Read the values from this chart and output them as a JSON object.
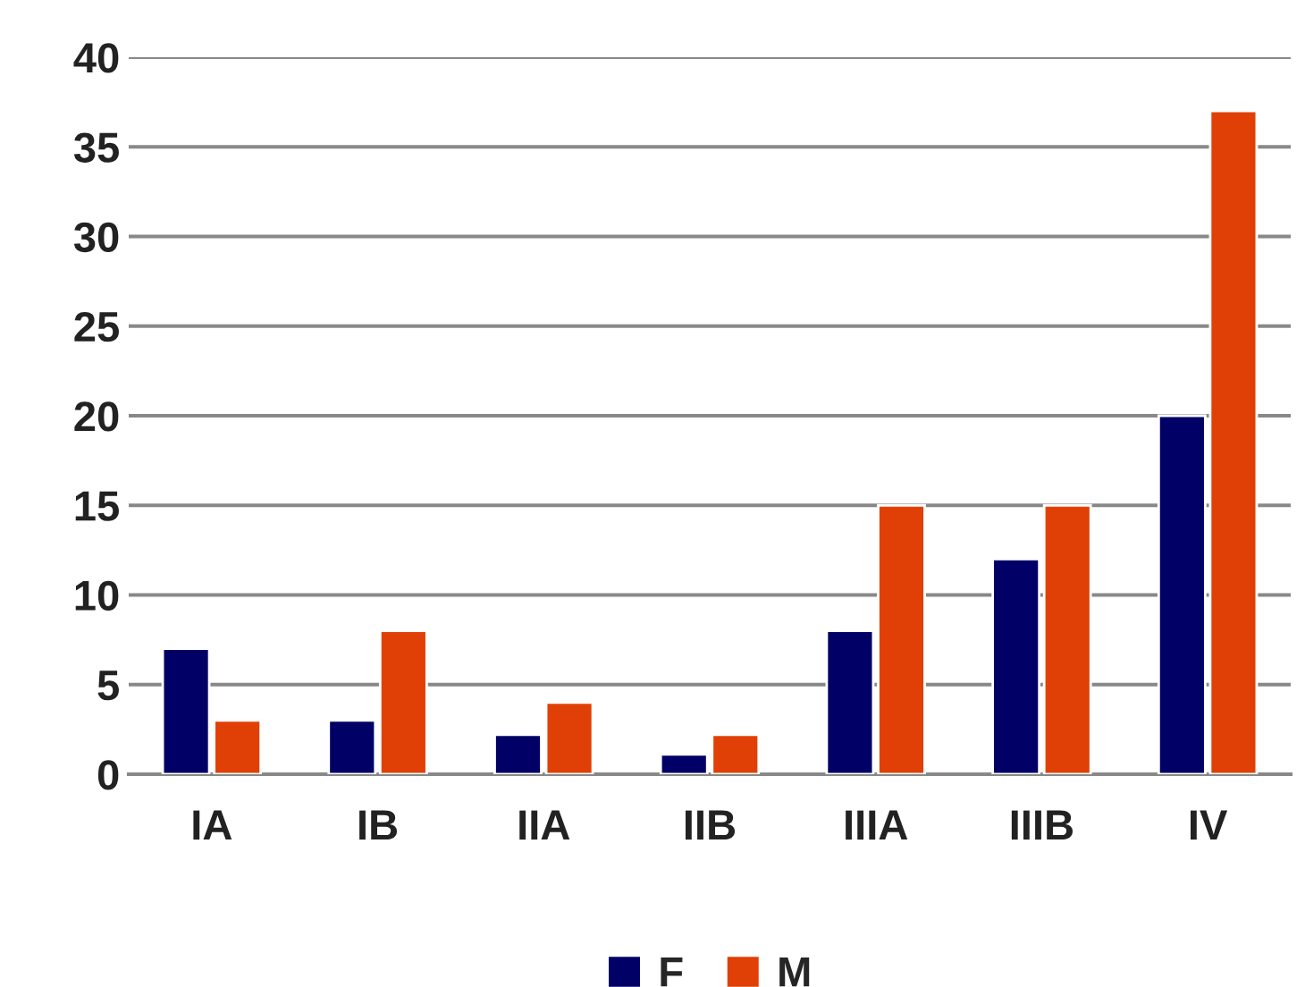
{
  "chart_data": {
    "type": "bar",
    "categories": [
      "IA",
      "IB",
      "IIA",
      "IIB",
      "IIIA",
      "IIIB",
      "IV"
    ],
    "series": [
      {
        "name": "F",
        "color": "#000066",
        "values": [
          7,
          3,
          2.2,
          1.1,
          8,
          12,
          20
        ]
      },
      {
        "name": "M",
        "color": "#e04006",
        "values": [
          3,
          8,
          4,
          2.2,
          15,
          15,
          37
        ]
      }
    ],
    "ylim": [
      0,
      40
    ],
    "yticks": [
      0,
      5,
      10,
      15,
      20,
      25,
      30,
      35,
      40
    ],
    "grid": "y",
    "legend": "bottom"
  }
}
